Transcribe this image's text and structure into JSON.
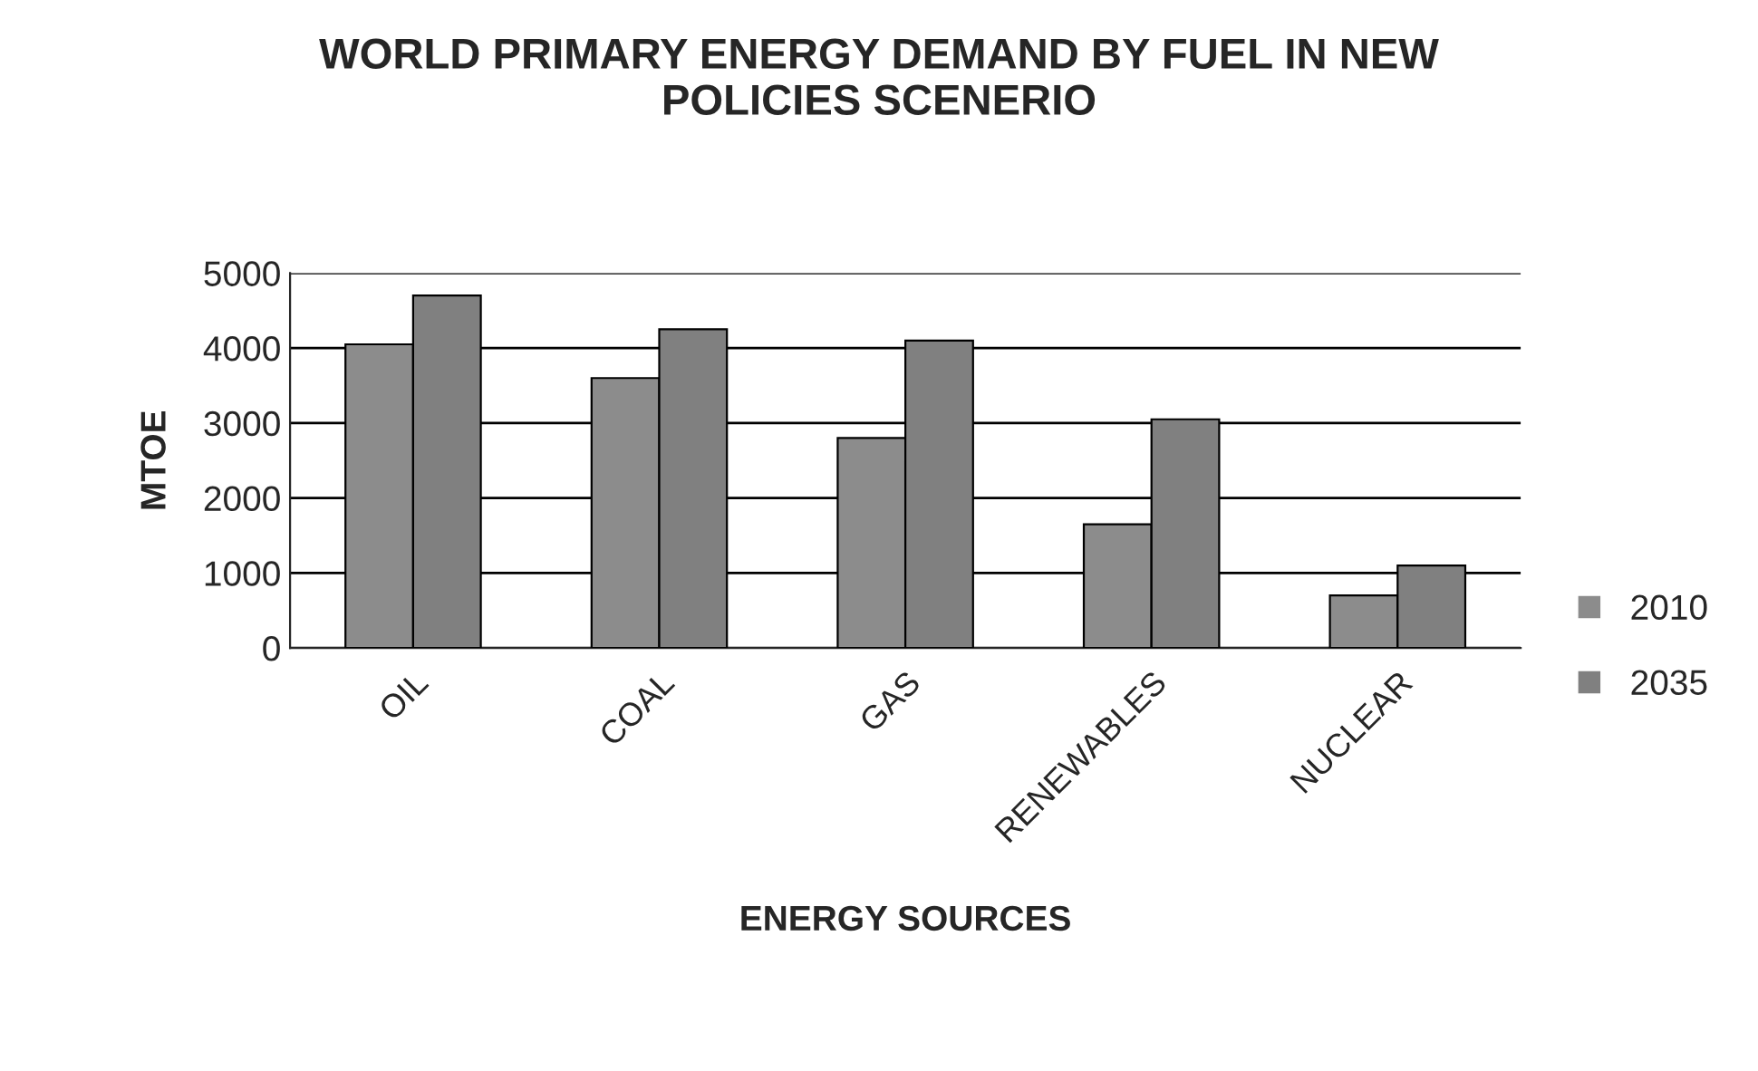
{
  "chart_data": {
    "type": "bar",
    "title": "WORLD PRIMARY ENERGY DEMAND BY FUEL IN NEW\nPOLICIES SCENERIO",
    "xlabel": "ENERGY SOURCES",
    "ylabel": "MTOE",
    "categories": [
      "OIL",
      "COAL",
      "GAS",
      "RENEWABLES",
      "NUCLEAR"
    ],
    "series": [
      {
        "name": "2010",
        "color": "#8c8c8c",
        "values": [
          4050,
          3600,
          2800,
          1650,
          700
        ]
      },
      {
        "name": "2035",
        "color": "#808080",
        "values": [
          4700,
          4250,
          4100,
          3050,
          1100
        ]
      }
    ],
    "ylim": [
      0,
      5000
    ],
    "yticks": [
      0,
      1000,
      2000,
      3000,
      4000,
      5000
    ],
    "grid": "y",
    "legend": "right"
  }
}
